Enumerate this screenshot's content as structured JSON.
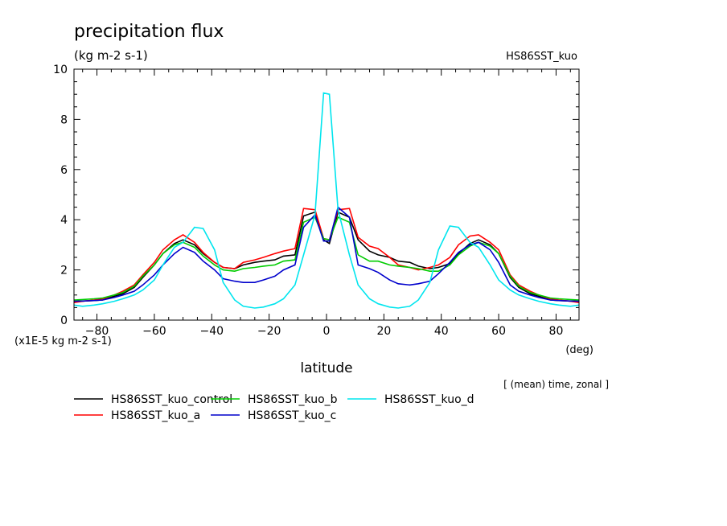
{
  "chart_data": {
    "type": "line",
    "title": "precipitation flux",
    "units": "(kg m-2 s-1)",
    "run_label": "HS86SST_kuo",
    "xlabel": "latitude",
    "xunit": "(deg)",
    "yscale_note": "(x1E-5 kg m-2 s-1)",
    "subtitle": "[ (mean) time, zonal ]",
    "xlim": [
      -88,
      88
    ],
    "ylim": [
      0,
      10
    ],
    "xticks": [
      -80,
      -60,
      -40,
      -20,
      0,
      20,
      40,
      60,
      80
    ],
    "yticks": [
      0,
      2,
      4,
      6,
      8,
      10
    ],
    "x": [
      -88,
      -85,
      -81,
      -78,
      -74,
      -71,
      -67,
      -64,
      -60,
      -57,
      -53,
      -50,
      -46,
      -43,
      -39,
      -36,
      -32,
      -29,
      -25,
      -22,
      -18,
      -15,
      -11,
      -8,
      -4,
      -1,
      1,
      4,
      8,
      11,
      15,
      18,
      22,
      25,
      29,
      32,
      36,
      39,
      43,
      46,
      50,
      53,
      57,
      60,
      64,
      67,
      71,
      74,
      78,
      81,
      85,
      88
    ],
    "series": [
      {
        "name": "HS86SST_kuo_control",
        "color": "#000000",
        "values": [
          0.75,
          0.76,
          0.78,
          0.8,
          0.95,
          1.05,
          1.3,
          1.7,
          2.2,
          2.65,
          3.05,
          3.2,
          3.0,
          2.65,
          2.3,
          2.1,
          2.05,
          2.2,
          2.3,
          2.35,
          2.4,
          2.55,
          2.6,
          4.15,
          4.3,
          3.2,
          3.05,
          4.3,
          4.1,
          3.2,
          2.75,
          2.6,
          2.5,
          2.35,
          2.3,
          2.15,
          2.05,
          2.1,
          2.25,
          2.65,
          3.05,
          3.2,
          3.0,
          2.65,
          1.7,
          1.3,
          1.05,
          0.95,
          0.8,
          0.78,
          0.76,
          0.75
        ]
      },
      {
        "name": "HS86SST_kuo_a",
        "color": "#ff0000",
        "values": [
          0.7,
          0.75,
          0.8,
          0.85,
          1.0,
          1.15,
          1.4,
          1.8,
          2.3,
          2.8,
          3.2,
          3.4,
          3.1,
          2.7,
          2.3,
          2.1,
          2.05,
          2.3,
          2.4,
          2.5,
          2.65,
          2.75,
          2.85,
          4.45,
          4.4,
          3.25,
          3.2,
          4.4,
          4.45,
          3.3,
          2.95,
          2.85,
          2.5,
          2.2,
          2.1,
          2.0,
          2.1,
          2.2,
          2.5,
          3.0,
          3.35,
          3.4,
          3.1,
          2.8,
          1.8,
          1.4,
          1.15,
          1.0,
          0.85,
          0.8,
          0.75,
          0.7
        ]
      },
      {
        "name": "HS86SST_kuo_b",
        "color": "#00cc00",
        "values": [
          0.8,
          0.82,
          0.85,
          0.88,
          1.0,
          1.1,
          1.35,
          1.75,
          2.2,
          2.65,
          3.0,
          3.1,
          2.9,
          2.55,
          2.2,
          2.0,
          1.95,
          2.05,
          2.1,
          2.15,
          2.2,
          2.35,
          2.4,
          3.9,
          4.1,
          3.25,
          3.2,
          4.1,
          3.9,
          2.6,
          2.35,
          2.35,
          2.2,
          2.15,
          2.1,
          2.05,
          1.95,
          1.95,
          2.2,
          2.6,
          2.95,
          3.1,
          2.95,
          2.65,
          1.75,
          1.35,
          1.1,
          1.0,
          0.88,
          0.85,
          0.82,
          0.8
        ]
      },
      {
        "name": "HS86SST_kuo_c",
        "color": "#0000cc",
        "values": [
          0.75,
          0.76,
          0.78,
          0.8,
          0.9,
          1.0,
          1.15,
          1.4,
          1.8,
          2.2,
          2.65,
          2.9,
          2.7,
          2.35,
          2.0,
          1.65,
          1.55,
          1.5,
          1.5,
          1.6,
          1.75,
          2.0,
          2.2,
          3.7,
          4.2,
          3.15,
          3.15,
          4.5,
          4.1,
          2.2,
          2.05,
          1.9,
          1.6,
          1.45,
          1.4,
          1.45,
          1.55,
          1.85,
          2.3,
          2.7,
          3.0,
          3.1,
          2.8,
          2.3,
          1.4,
          1.15,
          1.0,
          0.9,
          0.8,
          0.78,
          0.76,
          0.75
        ]
      },
      {
        "name": "HS86SST_kuo_d",
        "color": "#00e5ee",
        "values": [
          0.6,
          0.55,
          0.6,
          0.65,
          0.75,
          0.85,
          1.0,
          1.2,
          1.6,
          2.2,
          2.9,
          3.1,
          3.7,
          3.65,
          2.8,
          1.5,
          0.8,
          0.55,
          0.48,
          0.52,
          0.65,
          0.85,
          1.4,
          2.6,
          4.2,
          9.05,
          9.0,
          4.4,
          2.6,
          1.4,
          0.85,
          0.65,
          0.52,
          0.48,
          0.55,
          0.8,
          1.5,
          2.8,
          3.75,
          3.7,
          3.1,
          2.9,
          2.2,
          1.6,
          1.2,
          1.0,
          0.85,
          0.75,
          0.65,
          0.6,
          0.55,
          0.6
        ]
      }
    ]
  }
}
